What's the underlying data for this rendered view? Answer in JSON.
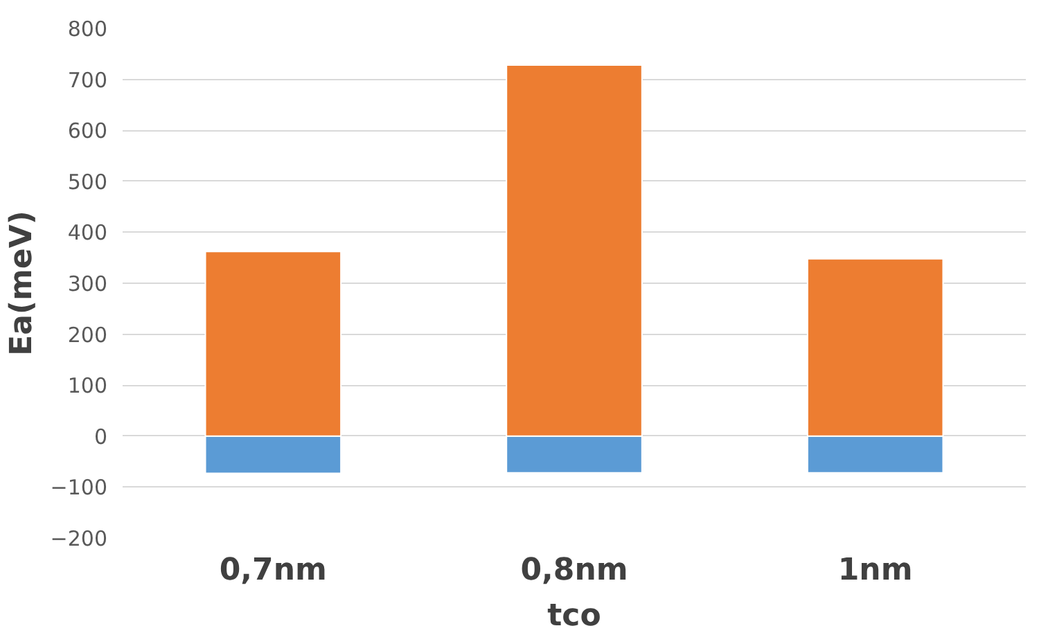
{
  "chart_data": {
    "type": "bar",
    "stacked": true,
    "xlabel": "tco",
    "ylabel": "Ea(meV)",
    "categories": [
      "0,7nm",
      "0,8nm",
      "1nm"
    ],
    "series": [
      {
        "color": "#5b9bd5",
        "values": [
          -73,
          -72,
          -72
        ]
      },
      {
        "color": "#ed7d31",
        "values": [
          362,
          728,
          348
        ]
      }
    ],
    "ylim": [
      -200,
      800
    ],
    "yticks": [
      -200,
      -100,
      0,
      100,
      200,
      300,
      400,
      500,
      600,
      700,
      800
    ],
    "grid": "y"
  }
}
